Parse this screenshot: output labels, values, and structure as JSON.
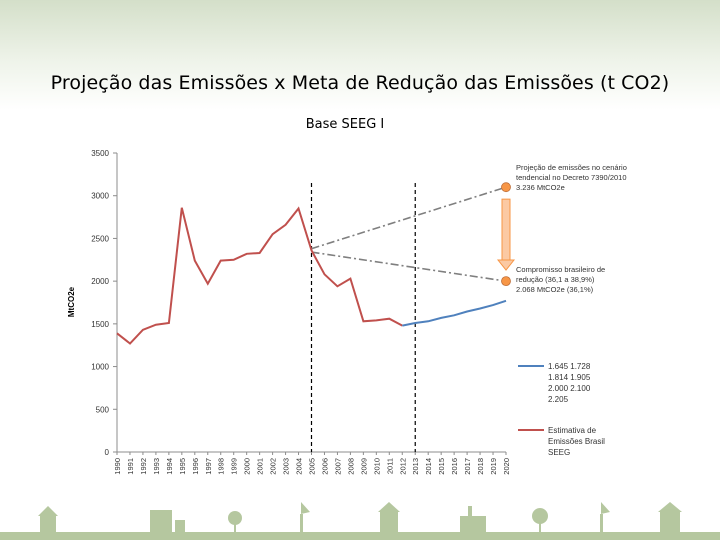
{
  "header": {
    "title": "Projeção das Emissões x Meta de Redução das Emissões  (t CO2)",
    "subtitle": "Base SEEG I"
  },
  "chart_data": {
    "type": "line",
    "ylabel": "MtCO2e",
    "ylim": [
      0,
      3500
    ],
    "yticks": [
      0,
      500,
      1000,
      1500,
      2000,
      2500,
      3000,
      3500
    ],
    "x": [
      "1990",
      "1991",
      "1992",
      "1993",
      "1994",
      "1995",
      "1996",
      "1997",
      "1998",
      "1999",
      "2000",
      "2001",
      "2002",
      "2003",
      "2004",
      "2005",
      "2006",
      "2007",
      "2008",
      "2009",
      "2010",
      "2011",
      "2012",
      "2013",
      "2014",
      "2015",
      "2016",
      "2017",
      "2018",
      "2019",
      "2020"
    ],
    "xtick_labels": [
      "1990",
      "1991",
      "1992",
      "1993",
      "1994",
      "1995",
      "1996",
      "1997",
      "1998",
      "1999",
      "2000",
      "2001",
      "2002",
      "2003",
      "2004",
      "2005",
      "2006",
      "2007",
      "2008",
      "2009",
      "2010",
      "2011",
      "2012",
      "2013",
      "2014",
      "2015",
      "2016",
      "2017",
      "2018",
      "2019",
      "2020"
    ],
    "series": [
      {
        "name": "Estimativa de Emissões Brasil SEEG",
        "color": "#c0504d",
        "points": [
          [
            1990,
            1390
          ],
          [
            1991,
            1270
          ],
          [
            1992,
            1430
          ],
          [
            1993,
            1490
          ],
          [
            1994,
            1510
          ],
          [
            1995,
            2860
          ],
          [
            1996,
            2240
          ],
          [
            1997,
            1970
          ],
          [
            1998,
            2240
          ],
          [
            1999,
            2250
          ],
          [
            2000,
            2320
          ],
          [
            2001,
            2330
          ],
          [
            2002,
            2550
          ],
          [
            2003,
            2660
          ],
          [
            2004,
            2850
          ],
          [
            2005,
            2360
          ],
          [
            2006,
            2080
          ],
          [
            2007,
            1940
          ],
          [
            2008,
            2030
          ],
          [
            2009,
            1530
          ],
          [
            2010,
            1540
          ],
          [
            2011,
            1560
          ],
          [
            2012,
            1480
          ]
        ]
      },
      {
        "name": "1.645  1.728  1.814  1.905  2.000  2.100  2.205",
        "color": "#4f81bd",
        "points": [
          [
            2012,
            1480
          ],
          [
            2013,
            1510
          ],
          [
            2014,
            1530
          ],
          [
            2015,
            1570
          ],
          [
            2016,
            1600
          ],
          [
            2017,
            1645
          ],
          [
            2018,
            1680
          ],
          [
            2019,
            1720
          ],
          [
            2020,
            1770
          ]
        ]
      }
    ],
    "projection_lines": [
      {
        "from": [
          2005,
          2380
        ],
        "to": [
          2020,
          3100
        ],
        "color": "#7f7f7f",
        "style": "dash-dot"
      },
      {
        "from": [
          2005,
          2340
        ],
        "to": [
          2020,
          2000
        ],
        "color": "#7f7f7f",
        "style": "dash-dot"
      }
    ],
    "markers": [
      {
        "x": 2020,
        "y": 3100,
        "color": "#f79646"
      },
      {
        "x": 2020,
        "y": 2000,
        "color": "#f79646"
      }
    ],
    "reference_lines": [
      2005,
      2013
    ],
    "arrow": {
      "x": 2020,
      "from_y": 2960,
      "to_y": 2130,
      "color": "#f79646"
    },
    "annotations": [
      {
        "text_lines": [
          "Projeção de emissões no cenário",
          "tendencial no Decreto 7390/2010",
          "3.236 MtCO2e"
        ]
      },
      {
        "text_lines": [
          "Compromisso brasileiro de",
          "redução (36,1 a 38,9%)",
          "2.068 MtCO2e (36,1%)"
        ]
      }
    ],
    "legend": {
      "placement": "right",
      "entries": [
        {
          "lines": [
            "1.645   1.728",
            "1.814   1.905",
            "2.000   2.100",
            "2.205"
          ],
          "color": "#4f81bd"
        },
        {
          "lines": [
            "Estimativa de",
            "Emissões Brasil",
            "SEEG"
          ],
          "color": "#c0504d"
        }
      ]
    }
  }
}
